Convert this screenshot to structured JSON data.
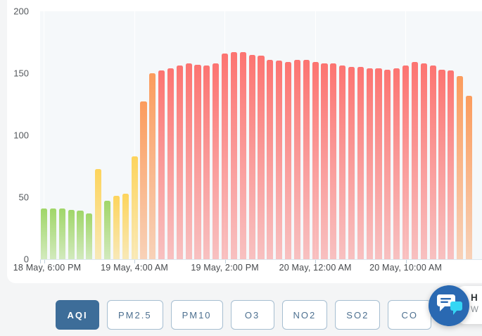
{
  "chart_data": {
    "type": "bar",
    "title": "",
    "series_name": "AQI",
    "ylim": [
      0,
      200
    ],
    "y_tick_labels": [
      "0",
      "50",
      "100",
      "150",
      "200"
    ],
    "x_tick_labels": [
      "18 May, 6:00 PM",
      "19 May, 4:00 AM",
      "19 May, 2:00 PM",
      "20 May, 12:00 AM",
      "20 May, 10:00 AM"
    ],
    "x_tick_bar_indices": [
      0,
      10,
      20,
      30,
      40
    ],
    "grid": "vertical-only",
    "legend": "none",
    "palette": {
      "good": "#a0d668",
      "moderate": "#fdd45c",
      "unhealthy_sensitive": "#fb9c5d",
      "unhealthy": "#fc7471"
    },
    "bars": [
      {
        "v": 41,
        "c": "good"
      },
      {
        "v": 41,
        "c": "good"
      },
      {
        "v": 41,
        "c": "good"
      },
      {
        "v": 40,
        "c": "good"
      },
      {
        "v": 39,
        "c": "good"
      },
      {
        "v": 37,
        "c": "good"
      },
      {
        "v": 73,
        "c": "moderate"
      },
      {
        "v": 47,
        "c": "good"
      },
      {
        "v": 51,
        "c": "moderate"
      },
      {
        "v": 53,
        "c": "moderate"
      },
      {
        "v": 83,
        "c": "moderate"
      },
      {
        "v": 127,
        "c": "unhealthy_sensitive"
      },
      {
        "v": 150,
        "c": "unhealthy_sensitive"
      },
      {
        "v": 152,
        "c": "unhealthy"
      },
      {
        "v": 154,
        "c": "unhealthy"
      },
      {
        "v": 156,
        "c": "unhealthy"
      },
      {
        "v": 158,
        "c": "unhealthy"
      },
      {
        "v": 157,
        "c": "unhealthy"
      },
      {
        "v": 156,
        "c": "unhealthy"
      },
      {
        "v": 158,
        "c": "unhealthy"
      },
      {
        "v": 166,
        "c": "unhealthy"
      },
      {
        "v": 167,
        "c": "unhealthy"
      },
      {
        "v": 167,
        "c": "unhealthy"
      },
      {
        "v": 165,
        "c": "unhealthy"
      },
      {
        "v": 164,
        "c": "unhealthy"
      },
      {
        "v": 161,
        "c": "unhealthy"
      },
      {
        "v": 160,
        "c": "unhealthy"
      },
      {
        "v": 159,
        "c": "unhealthy"
      },
      {
        "v": 161,
        "c": "unhealthy"
      },
      {
        "v": 161,
        "c": "unhealthy"
      },
      {
        "v": 159,
        "c": "unhealthy"
      },
      {
        "v": 158,
        "c": "unhealthy"
      },
      {
        "v": 158,
        "c": "unhealthy"
      },
      {
        "v": 156,
        "c": "unhealthy"
      },
      {
        "v": 155,
        "c": "unhealthy"
      },
      {
        "v": 155,
        "c": "unhealthy"
      },
      {
        "v": 154,
        "c": "unhealthy"
      },
      {
        "v": 154,
        "c": "unhealthy"
      },
      {
        "v": 153,
        "c": "unhealthy"
      },
      {
        "v": 154,
        "c": "unhealthy"
      },
      {
        "v": 156,
        "c": "unhealthy"
      },
      {
        "v": 159,
        "c": "unhealthy"
      },
      {
        "v": 158,
        "c": "unhealthy"
      },
      {
        "v": 156,
        "c": "unhealthy"
      },
      {
        "v": 153,
        "c": "unhealthy"
      },
      {
        "v": 152,
        "c": "unhealthy"
      },
      {
        "v": 148,
        "c": "unhealthy_sensitive"
      },
      {
        "v": 132,
        "c": "unhealthy_sensitive"
      }
    ]
  },
  "pollutant_tabs": [
    {
      "label": "AQI",
      "selected": true
    },
    {
      "label": "PM2.5",
      "selected": false
    },
    {
      "label": "PM10",
      "selected": false
    },
    {
      "label": "O3",
      "selected": false
    },
    {
      "label": "NO2",
      "selected": false
    },
    {
      "label": "SO2",
      "selected": false
    },
    {
      "label": "CO",
      "selected": false
    }
  ],
  "chat": {
    "teaser_line1": "H",
    "teaser_line2": "W"
  }
}
